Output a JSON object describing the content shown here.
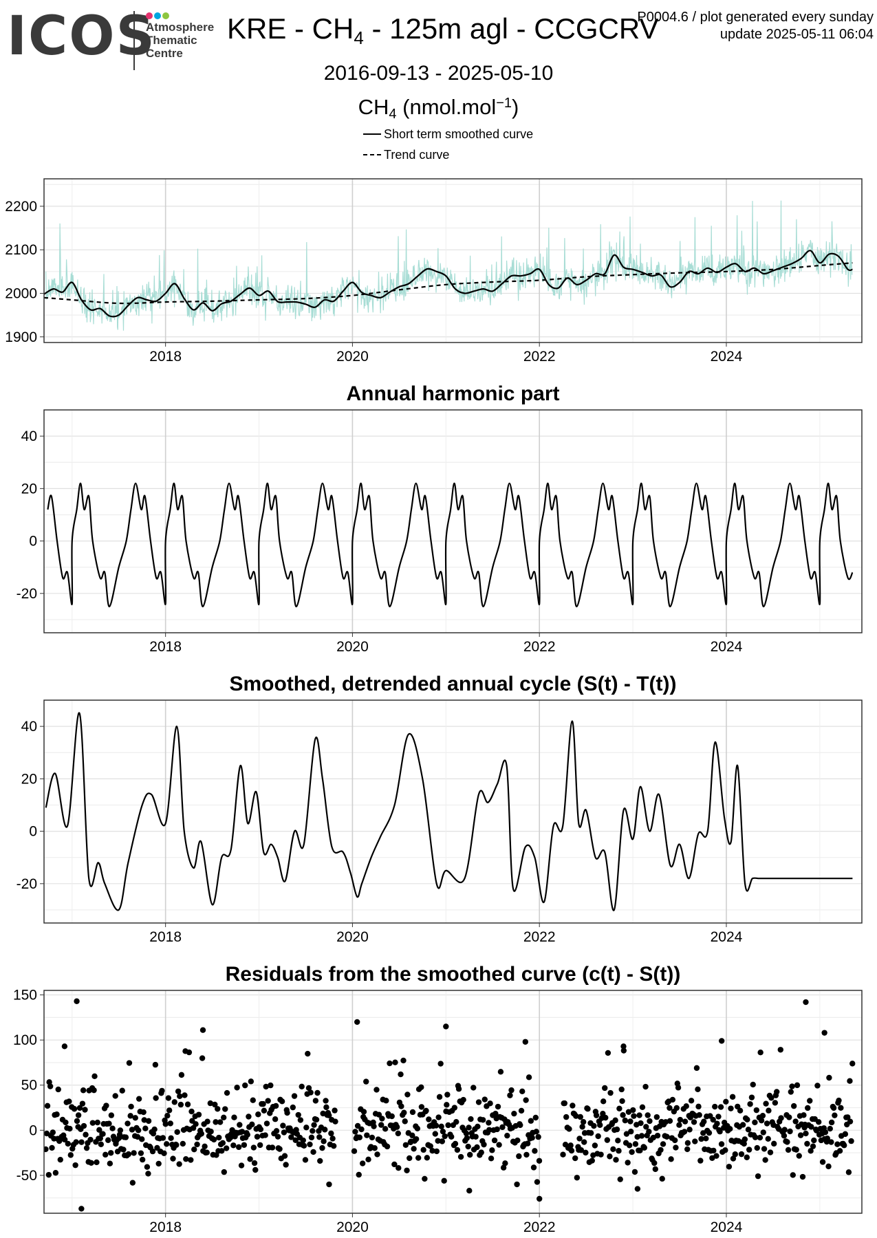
{
  "header": {
    "logo_text": "ICOS",
    "logo_sub": [
      "Atmosphere",
      "Thematic",
      "Centre"
    ],
    "logo_dot_colors": [
      "#e5336f",
      "#00a6e0",
      "#8dc63f"
    ],
    "title_main": "KRE - CH",
    "title_sub": "4",
    "title_rest": " - 125m agl - CCGCRV",
    "meta_line1": "P0004.6 / plot generated every sunday",
    "meta_line2": "update  2025-05-11 06:04",
    "date_range": "2016-09-13 - 2025-05-10",
    "unit_main": "CH",
    "unit_sub": "4",
    "unit_rest": " (nmol.mol",
    "unit_sup": "−1",
    "unit_close": ")"
  },
  "legend": {
    "items": [
      {
        "label": "Short term smoothed curve",
        "style": "solid"
      },
      {
        "label": "Trend curve",
        "style": "dashed"
      }
    ]
  },
  "colors": {
    "raw_data": "#a8ddd5",
    "line": "#000000",
    "grid": "#dddddd",
    "frame": "#333333"
  },
  "chart_data": [
    {
      "type": "line",
      "title": "",
      "xlim": [
        2016.7,
        2025.45
      ],
      "ylim": [
        1887,
        2263
      ],
      "x_ticks": [
        2018,
        2020,
        2022,
        2024
      ],
      "y_ticks": [
        1900,
        2000,
        2100,
        2200
      ],
      "grid": true,
      "series": [
        {
          "name": "Short term smoothed curve",
          "style": "solid",
          "x": [
            2016.7,
            2016.8,
            2016.9,
            2017.0,
            2017.1,
            2017.2,
            2017.3,
            2017.4,
            2017.5,
            2017.6,
            2017.7,
            2017.8,
            2017.9,
            2018.0,
            2018.1,
            2018.2,
            2018.3,
            2018.4,
            2018.5,
            2018.6,
            2018.7,
            2018.8,
            2018.9,
            2019.0,
            2019.1,
            2019.2,
            2019.3,
            2019.4,
            2019.5,
            2019.6,
            2019.7,
            2019.8,
            2019.9,
            2020.0,
            2020.1,
            2020.2,
            2020.3,
            2020.4,
            2020.5,
            2020.6,
            2020.7,
            2020.8,
            2020.9,
            2021.0,
            2021.1,
            2021.2,
            2021.3,
            2021.4,
            2021.5,
            2021.6,
            2021.7,
            2021.8,
            2021.9,
            2022.0,
            2022.1,
            2022.2,
            2022.3,
            2022.4,
            2022.5,
            2022.6,
            2022.7,
            2022.8,
            2022.9,
            2023.0,
            2023.1,
            2023.2,
            2023.3,
            2023.4,
            2023.5,
            2023.6,
            2023.7,
            2023.8,
            2023.9,
            2024.0,
            2024.1,
            2024.2,
            2024.3,
            2024.4,
            2024.5,
            2024.6,
            2024.7,
            2024.8,
            2024.9,
            2025.0,
            2025.1,
            2025.2,
            2025.3,
            2025.35
          ],
          "y": [
            1998,
            2010,
            2003,
            2025,
            1985,
            1962,
            1965,
            1948,
            1950,
            1972,
            1990,
            1985,
            1982,
            2000,
            2022,
            1988,
            1962,
            1978,
            1960,
            1976,
            1982,
            1998,
            2012,
            1995,
            2005,
            1981,
            1980,
            1980,
            1975,
            1968,
            1985,
            1982,
            2005,
            2025,
            2002,
            1995,
            1990,
            2003,
            2015,
            2022,
            2040,
            2056,
            2050,
            2040,
            2010,
            2000,
            2005,
            2010,
            2005,
            2022,
            2040,
            2040,
            2045,
            2055,
            2020,
            2012,
            2035,
            2020,
            2030,
            2045,
            2045,
            2088,
            2060,
            2055,
            2048,
            2040,
            2042,
            2015,
            2025,
            2050,
            2045,
            2058,
            2048,
            2060,
            2068,
            2050,
            2058,
            2045,
            2052,
            2060,
            2068,
            2080,
            2098,
            2070,
            2090,
            2085,
            2055,
            2055
          ]
        },
        {
          "name": "Trend curve",
          "style": "dashed",
          "x": [
            2016.7,
            2017.0,
            2017.5,
            2018.0,
            2018.5,
            2019.0,
            2019.5,
            2020.0,
            2020.5,
            2021.0,
            2021.5,
            2022.0,
            2022.5,
            2023.0,
            2023.5,
            2024.0,
            2024.5,
            2025.0,
            2025.35
          ],
          "y": [
            1990,
            1985,
            1977,
            1980,
            1982,
            1985,
            1988,
            1995,
            2008,
            2020,
            2026,
            2030,
            2038,
            2043,
            2047,
            2050,
            2055,
            2064,
            2070
          ]
        }
      ]
    },
    {
      "type": "line",
      "title": "Annual harmonic part",
      "xlim": [
        2016.7,
        2025.45
      ],
      "ylim": [
        -35,
        50
      ],
      "x_ticks": [
        2018,
        2020,
        2022,
        2024
      ],
      "y_ticks": [
        -20,
        0,
        20,
        40
      ],
      "grid": true,
      "series": [
        {
          "style": "solid",
          "periodic": true,
          "period": 1.0,
          "x_start": 2016.7,
          "x_end": 2025.35,
          "cycle_phase": [
            0.0,
            0.05,
            0.09,
            0.13,
            0.18,
            0.22,
            0.3,
            0.35,
            0.4,
            0.5,
            0.58,
            0.63,
            0.68,
            0.74,
            0.78,
            0.84,
            0.9,
            0.95,
            1.0
          ],
          "cycle_values": [
            0,
            12,
            22,
            12,
            17,
            0,
            -14,
            -12,
            -25,
            -10,
            0,
            12,
            22,
            12,
            17,
            0,
            -14,
            -12,
            -24
          ]
        }
      ]
    },
    {
      "type": "line",
      "title": "Smoothed, detrended annual cycle (S(t) - T(t))",
      "xlim": [
        2016.7,
        2025.45
      ],
      "ylim": [
        -35,
        50
      ],
      "x_ticks": [
        2018,
        2020,
        2022,
        2024
      ],
      "y_ticks": [
        -20,
        0,
        20,
        40
      ],
      "grid": true,
      "series": [
        {
          "style": "solid",
          "x": [
            2016.72,
            2016.82,
            2016.95,
            2017.08,
            2017.18,
            2017.28,
            2017.35,
            2017.5,
            2017.6,
            2017.75,
            2017.85,
            2018.0,
            2018.12,
            2018.2,
            2018.3,
            2018.38,
            2018.5,
            2018.6,
            2018.7,
            2018.8,
            2018.88,
            2018.97,
            2019.05,
            2019.13,
            2019.2,
            2019.28,
            2019.38,
            2019.48,
            2019.6,
            2019.68,
            2019.78,
            2019.9,
            2019.98,
            2020.05,
            2020.1,
            2020.2,
            2020.3,
            2020.45,
            2020.6,
            2020.75,
            2020.9,
            2021.0,
            2021.2,
            2021.35,
            2021.45,
            2021.55,
            2021.65,
            2021.72,
            2021.85,
            2021.95,
            2022.05,
            2022.15,
            2022.25,
            2022.35,
            2022.42,
            2022.5,
            2022.6,
            2022.7,
            2022.8,
            2022.9,
            2023.0,
            2023.08,
            2023.18,
            2023.28,
            2023.4,
            2023.5,
            2023.6,
            2023.7,
            2023.8,
            2023.88,
            2023.98,
            2024.05,
            2024.12,
            2024.2,
            2024.28,
            2024.35,
            2024.42,
            2024.5,
            2024.6,
            2024.7,
            2024.8,
            2024.88,
            2024.95,
            2025.0,
            2025.05,
            2025.12,
            2025.2,
            2025.28,
            2025.35
          ],
          "y": [
            9,
            22,
            2,
            45,
            -18,
            -12,
            -20,
            -30,
            -12,
            10,
            14,
            3,
            40,
            0,
            -14,
            -4,
            -28,
            -10,
            -7,
            25,
            3,
            15,
            -8,
            -5,
            -10,
            -19,
            0,
            -5,
            35,
            20,
            -6,
            -8,
            -16,
            -25,
            -20,
            -10,
            -2,
            10,
            37,
            20,
            -20,
            -15,
            -18,
            14,
            11,
            18,
            25,
            -22,
            -6,
            -10,
            -27,
            2,
            2,
            42,
            3,
            8,
            -10,
            -8,
            -30,
            8,
            -3,
            17,
            0,
            14,
            -13,
            -5,
            -18,
            -1,
            0,
            34,
            5,
            -4,
            25,
            -20,
            -18,
            -18,
            -18,
            -18,
            -18,
            -18,
            -18,
            -18,
            -18,
            -18,
            -18,
            -18,
            -18,
            -18,
            -18
          ]
        }
      ]
    },
    {
      "type": "scatter",
      "title": "Residuals from the smoothed curve (c(t) - S(t))",
      "xlim": [
        2016.7,
        2025.45
      ],
      "ylim": [
        -92,
        155
      ],
      "x_ticks": [
        2018,
        2020,
        2022,
        2024
      ],
      "y_ticks": [
        -50,
        0,
        50,
        100,
        150
      ],
      "grid": true,
      "x_ranges": [
        [
          2016.72,
          2019.82
        ],
        [
          2020.02,
          2022.0
        ],
        [
          2022.25,
          2025.35
        ]
      ],
      "outliers": [
        [
          2017.05,
          143
        ],
        [
          2016.92,
          93
        ],
        [
          2017.1,
          -87
        ],
        [
          2018.4,
          111
        ],
        [
          2020.05,
          120
        ],
        [
          2021.85,
          98
        ],
        [
          2021.0,
          115
        ],
        [
          2022.9,
          93
        ],
        [
          2023.95,
          99
        ],
        [
          2024.85,
          142
        ],
        [
          2025.05,
          108
        ],
        [
          2022.0,
          -76
        ],
        [
          2019.75,
          -60
        ],
        [
          2021.25,
          -67
        ],
        [
          2023.05,
          -65
        ]
      ]
    }
  ]
}
